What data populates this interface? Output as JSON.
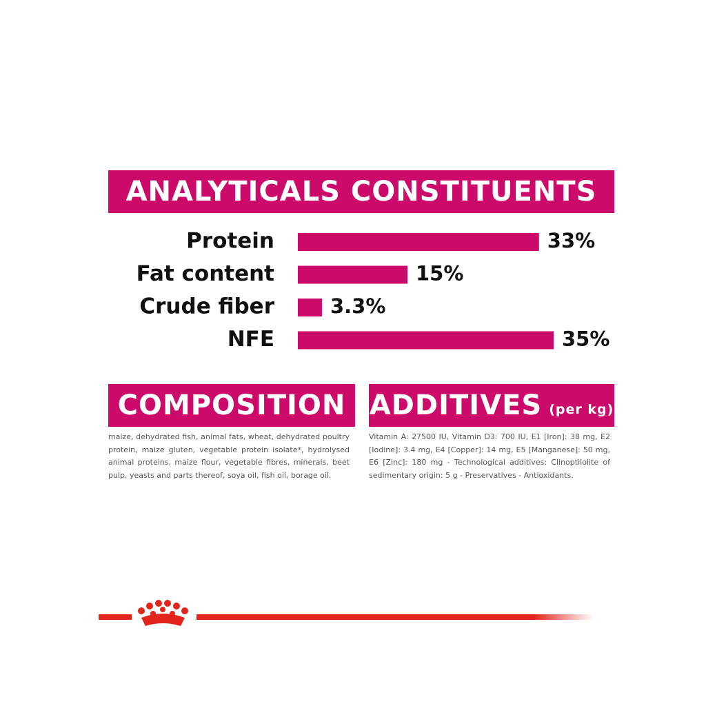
{
  "chart_data": {
    "type": "bar",
    "title": "ANALYTICALS CONSTITUENTS",
    "categories": [
      "Protein",
      "Fat content",
      "Crude fiber",
      "NFE"
    ],
    "values": [
      33,
      15,
      3.3,
      35
    ],
    "value_labels": [
      "33%",
      "15%",
      "3.3%",
      "35%"
    ],
    "color": "#cc0a6a"
  },
  "composition": {
    "title": "COMPOSITION",
    "text": "maize, dehydrated fish, animal fats, wheat, dehydrated poultry protein, maize gluten, vegetable protein isolate*, hydrolysed animal proteins, maize flour, vegetable fibres, minerals, beet pulp, yeasts and parts thereof, soya oil, fish oil, borage oil."
  },
  "additives": {
    "title": "ADDITIVES",
    "subtitle": "(per kg)",
    "text": "Vitamin A: 27500 IU, Vitamin D3: 700 IU, E1 [Iron]: 38 mg, E2 [Iodine]: 3.4 mg, E4 [Copper]: 14 mg, E5 [Manganese]: 50 mg, E6 [Zinc]: 180 mg - Technological additives: Clinoptilolite of sedimentary origin: 5 g - Preservatives - Antioxidants."
  }
}
